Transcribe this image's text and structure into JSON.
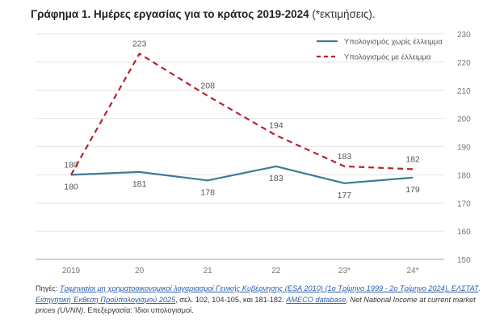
{
  "title": {
    "bold": "Γράφημα 1. Ημέρες εργασίας για το κράτος 2019-2024",
    "rest": "(*εκτιμήσεις)."
  },
  "colors": {
    "series1": "#3d7a95",
    "series2": "#b4232f",
    "axis": "#999999",
    "grid": "#dddddd"
  },
  "chart_data": {
    "type": "line",
    "title": "Γράφημα 1. Ημέρες εργασίας για το κράτος 2019-2024 (*εκτιμήσεις).",
    "categories": [
      "2019",
      "20",
      "21",
      "22",
      "23*",
      "24*"
    ],
    "ylim": [
      150,
      230
    ],
    "yticks": [
      150,
      160,
      170,
      180,
      190,
      200,
      210,
      220,
      230
    ],
    "y_axis_side": "right",
    "legend_position": "top-right",
    "series": [
      {
        "name": "Υπολογισμός χωρίς έλλειμμα",
        "style": "solid",
        "values": [
          180,
          181,
          178,
          183,
          177,
          179
        ],
        "labels": [
          "180",
          "181",
          "178",
          "183",
          "177",
          "179"
        ]
      },
      {
        "name": "Υπολογισμός με έλλειμμα",
        "style": "dashed",
        "values": [
          180,
          223,
          208,
          194,
          183,
          182
        ],
        "labels": [
          "180",
          "223",
          "208",
          "194",
          "183",
          "182"
        ]
      }
    ]
  },
  "sources": {
    "prefix": "Πηγές: ",
    "link1": "Τριμηνιαίοι μη χρηματοοικονομικοί λογαριασμοί Γενικής Κυβέρνησης (ESA 2010) (1ο Τρίμηνο 1999 - 2ο Τρίμηνο 2024), ΕΛΣΤΑΤ",
    "sep1": ". ",
    "link2": "Εισηγητική Έκθεση Προϋπολογισμού 2025",
    "mid": ", σελ.  102, 104-105, και 181-182. ",
    "link3": "AMECO database",
    "italic": ", Net National Income at current market prices (UVNN)",
    "end": ". Επεξεργασία: Ίδιοι υπολογισμοί."
  }
}
